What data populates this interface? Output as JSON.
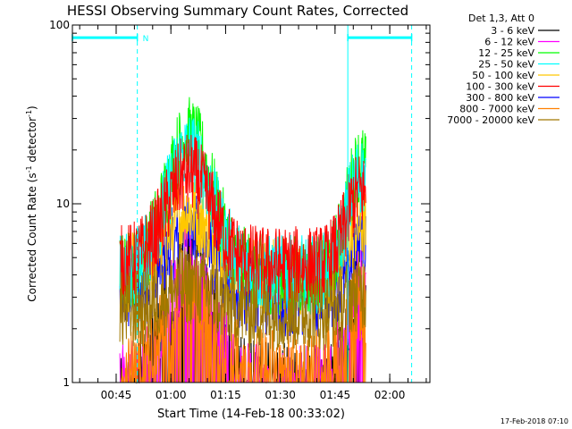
{
  "chart_data": {
    "type": "line",
    "title": "HESSI Observing Summary Count Rates, Corrected",
    "xlabel": "Start Time (14-Feb-18 00:33:02)",
    "ylabel": "Corrected Count Rate (s",
    "ylabel_sup1": "-1",
    "ylabel_mid": " detector",
    "ylabel_sup2": "-1",
    "ylabel_end": ")",
    "yscale": "log",
    "ylim": [
      1,
      100
    ],
    "xlim_minutes": [
      33.0,
      131.0
    ],
    "y_ticks": [
      {
        "value": 1,
        "label": "1"
      },
      {
        "value": 10,
        "label": "10"
      },
      {
        "value": 100,
        "label": "100"
      }
    ],
    "x_ticks": [
      {
        "minute": 45,
        "label": "00:45"
      },
      {
        "minute": 60,
        "label": "01:00"
      },
      {
        "minute": 75,
        "label": "01:15"
      },
      {
        "minute": 90,
        "label": "01:30"
      },
      {
        "minute": 105,
        "label": "01:45"
      },
      {
        "minute": 120,
        "label": "02:00"
      }
    ],
    "legend_title": "Det 1,3, Att 0",
    "series": [
      {
        "name": "3 - 6 keV",
        "color": "#000000",
        "peak": 4.0,
        "floor": 1.0
      },
      {
        "name": "6 - 12 keV",
        "color": "#ff00ff",
        "peak": 4.5,
        "floor": 1.0
      },
      {
        "name": "12 - 25 keV",
        "color": "#00ff00",
        "peak": 24,
        "floor": 4.0
      },
      {
        "name": "25 - 50 keV",
        "color": "#00ffff",
        "peak": 20,
        "floor": 4.0
      },
      {
        "name": "50 - 100 keV",
        "color": "#ffc800",
        "peak": 9,
        "floor": 4.0
      },
      {
        "name": "100 - 300 keV",
        "color": "#ff0000",
        "peak": 15,
        "floor": 4.5
      },
      {
        "name": "300 - 800 keV",
        "color": "#0000ff",
        "peak": 7,
        "floor": 3.0
      },
      {
        "name": "800 - 7000 keV",
        "color": "#ff8000",
        "peak": 3.5,
        "floor": 1.2
      },
      {
        "name": "7000 - 20000 keV",
        "color": "#a07800",
        "peak": 3.5,
        "floor": 2.5
      }
    ],
    "observing_segments": [
      {
        "label": "N",
        "start_minute": 33.0,
        "end_minute": 50.8,
        "y": 85,
        "color": "#00ffff"
      },
      {
        "label": "",
        "start_minute": 108.5,
        "end_minute": 126.0,
        "y": 85,
        "color": "#00ffff"
      }
    ],
    "event_markers": [
      {
        "minute": 50.8,
        "style": "dashed",
        "color": "#00ffff"
      },
      {
        "minute": 108.5,
        "style": "solid",
        "color": "#00ffff"
      },
      {
        "minute": 126.0,
        "style": "dashed",
        "color": "#00ffff"
      }
    ],
    "data_interval_minutes": [
      46.0,
      113.5
    ],
    "timestamp": "17-Feb-2018 07:10"
  }
}
